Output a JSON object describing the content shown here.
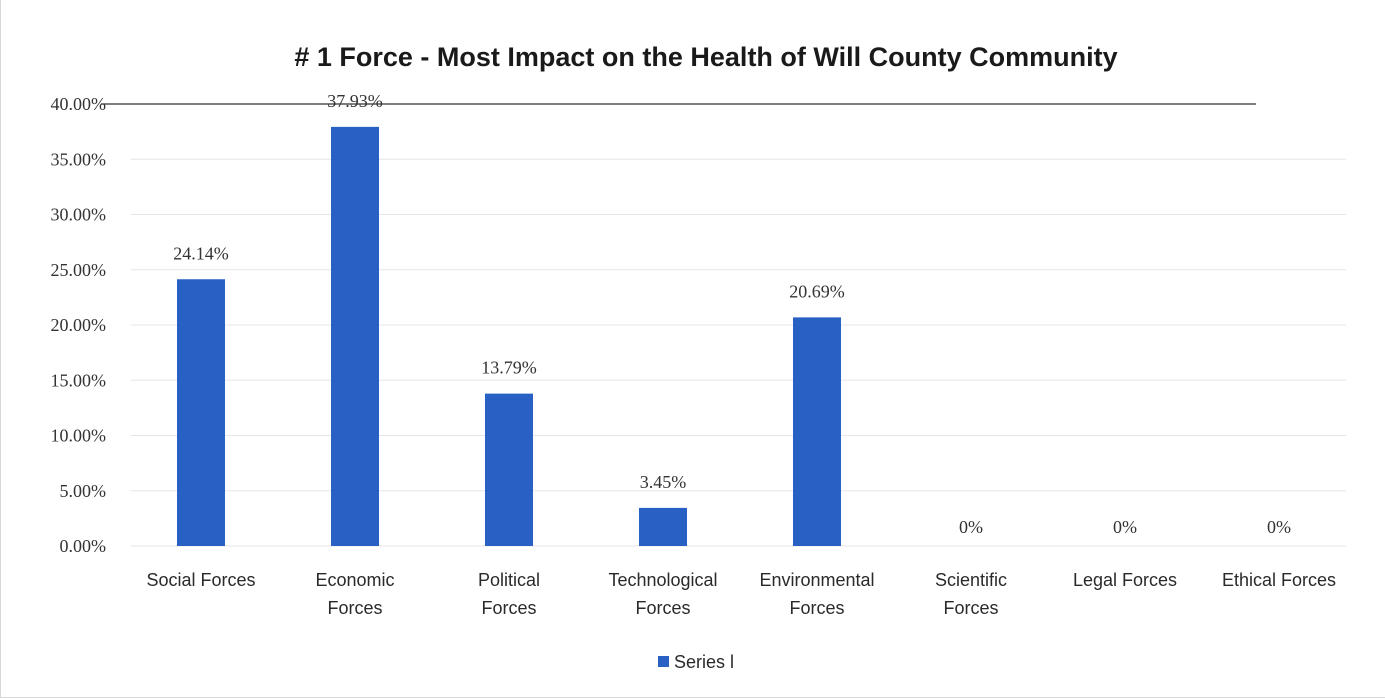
{
  "chart_data": {
    "type": "bar",
    "title": "# 1 Force - Most Impact on the Health of Will County Community",
    "xlabel": "",
    "ylabel": "",
    "categories": [
      [
        "Social Forces"
      ],
      [
        "Economic",
        "Forces"
      ],
      [
        "Political",
        "Forces"
      ],
      [
        "Technological",
        "Forces"
      ],
      [
        "Environmental",
        "Forces"
      ],
      [
        "Scientific",
        "Forces"
      ],
      [
        "Legal Forces"
      ],
      [
        "Ethical Forces"
      ]
    ],
    "series": [
      {
        "name": "Series l",
        "color": "#2860c4",
        "values": [
          24.14,
          37.93,
          13.79,
          3.45,
          20.69,
          0,
          0,
          0
        ],
        "labels": [
          "24.14%",
          "37.93%",
          "13.79%",
          "3.45%",
          "20.69%",
          "0%",
          "0%",
          "0%"
        ]
      }
    ],
    "ylim": [
      0,
      40
    ],
    "yticks": [
      0,
      5,
      10,
      15,
      20,
      25,
      30,
      35,
      40
    ],
    "ytick_labels": [
      "0.00%",
      "5.00%",
      "10.00%",
      "15.00%",
      "20.00%",
      "25.00%",
      "30.00%",
      "35.00%",
      "40.00%"
    ],
    "grid": true,
    "legend_position": "bottom"
  }
}
